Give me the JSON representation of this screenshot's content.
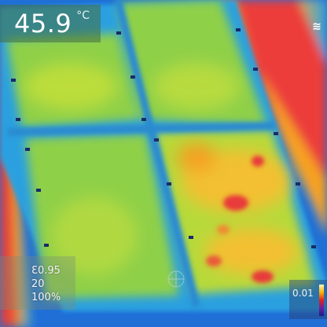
{
  "readout": {
    "temperature": "45.9",
    "unit": "°C"
  },
  "camera": {
    "logo_icon": "flir-logo-icon"
  },
  "parameters": [
    "Ɛ0.95",
    "20",
    "100%"
  ],
  "scale": {
    "value": "0.01"
  },
  "colors": {
    "cold": "#1f6fd6",
    "cool": "#2aa0e0",
    "mild": "#8fd04a",
    "warm": "#d9e43a",
    "hot": "#f2a020",
    "hottest": "#e83a3a"
  }
}
